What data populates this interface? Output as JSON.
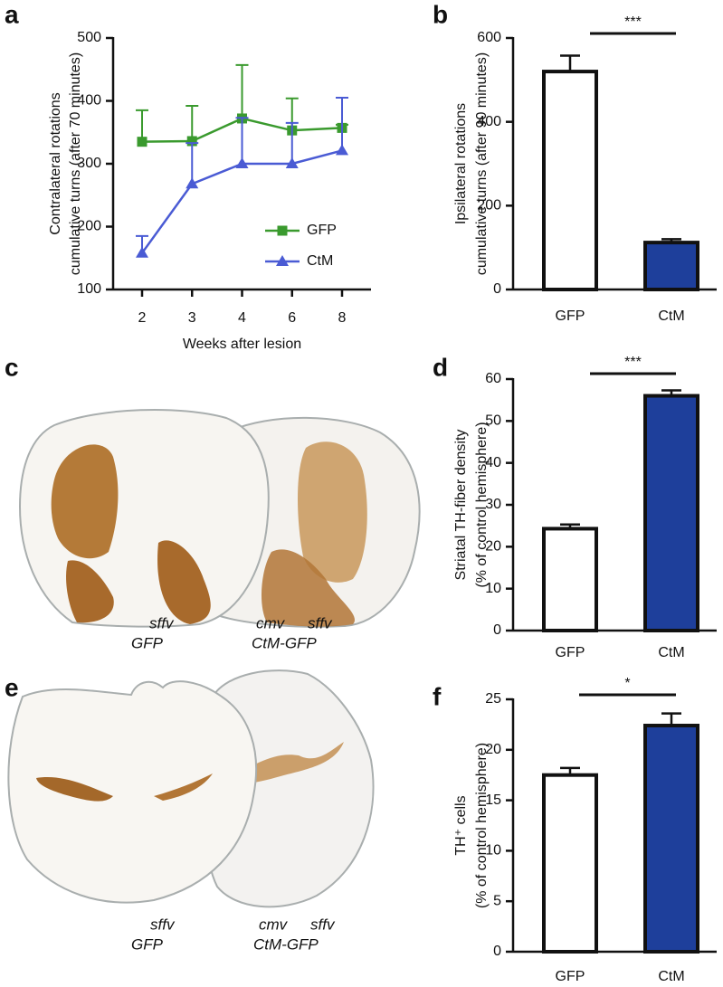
{
  "chart_data": [
    {
      "type": "line",
      "panel_label": "a",
      "ylabel": [
        "Contralateral rotations",
        "cumulative turns (after 70 minutes)"
      ],
      "xlabel": "Weeks after lesion",
      "categories": [
        "2",
        "3",
        "4",
        "6",
        "8"
      ],
      "series": [
        {
          "name": "GFP",
          "color": "#3a9a2e",
          "marker": "square",
          "values": [
            335,
            336,
            372,
            353,
            357
          ],
          "errors": [
            50,
            56,
            85,
            51,
            5
          ]
        },
        {
          "name": "CtM",
          "color": "#4a5bd4",
          "marker": "triangle",
          "values": [
            158,
            268,
            300,
            300,
            321
          ],
          "errors": [
            27,
            65,
            73,
            65,
            84
          ]
        }
      ],
      "ylim": [
        100,
        500
      ],
      "yticks": [
        100,
        200,
        300,
        400,
        500
      ]
    },
    {
      "type": "bar",
      "panel_label": "b",
      "ylabel": [
        "Ipsilateral rotations",
        "cumulative turns (after 90 minutes)"
      ],
      "categories": [
        "GFP",
        "CtM"
      ],
      "values": [
        520,
        112
      ],
      "errors": [
        38,
        8
      ],
      "colors": [
        "#ffffff",
        "#1e3f9b"
      ],
      "annotation": "***",
      "ylim": [
        0,
        600
      ],
      "yticks": [
        0,
        200,
        400,
        600
      ]
    },
    {
      "type": "bar",
      "panel_label": "d",
      "ylabel": [
        "Striatal TH-fiber density",
        "(% of control hemisphere)"
      ],
      "categories": [
        "GFP",
        "CtM"
      ],
      "values": [
        24.3,
        56
      ],
      "errors": [
        1,
        1.3
      ],
      "colors": [
        "#ffffff",
        "#1e3f9b"
      ],
      "annotation": "***",
      "ylim": [
        0,
        60
      ],
      "yticks": [
        0,
        10,
        20,
        30,
        40,
        50,
        60
      ]
    },
    {
      "type": "bar",
      "panel_label": "f",
      "ylabel": [
        "TH⁺ cells",
        "(% of control hemisphere)"
      ],
      "categories": [
        "GFP",
        "CtM"
      ],
      "values": [
        17.5,
        22.4
      ],
      "errors": [
        0.7,
        1.2
      ],
      "colors": [
        "#ffffff",
        "#1e3f9b"
      ],
      "annotation": "*",
      "ylim": [
        0,
        25
      ],
      "yticks": [
        0,
        5,
        10,
        15,
        20,
        25
      ]
    }
  ],
  "images": [
    {
      "panel_label": "c",
      "labels": [
        "sffv",
        "GFP",
        "cmv",
        "sffv",
        "CtM-GFP"
      ]
    },
    {
      "panel_label": "e",
      "labels": [
        "sffv",
        "GFP",
        "cmv",
        "sffv",
        "CtM-GFP"
      ]
    }
  ]
}
